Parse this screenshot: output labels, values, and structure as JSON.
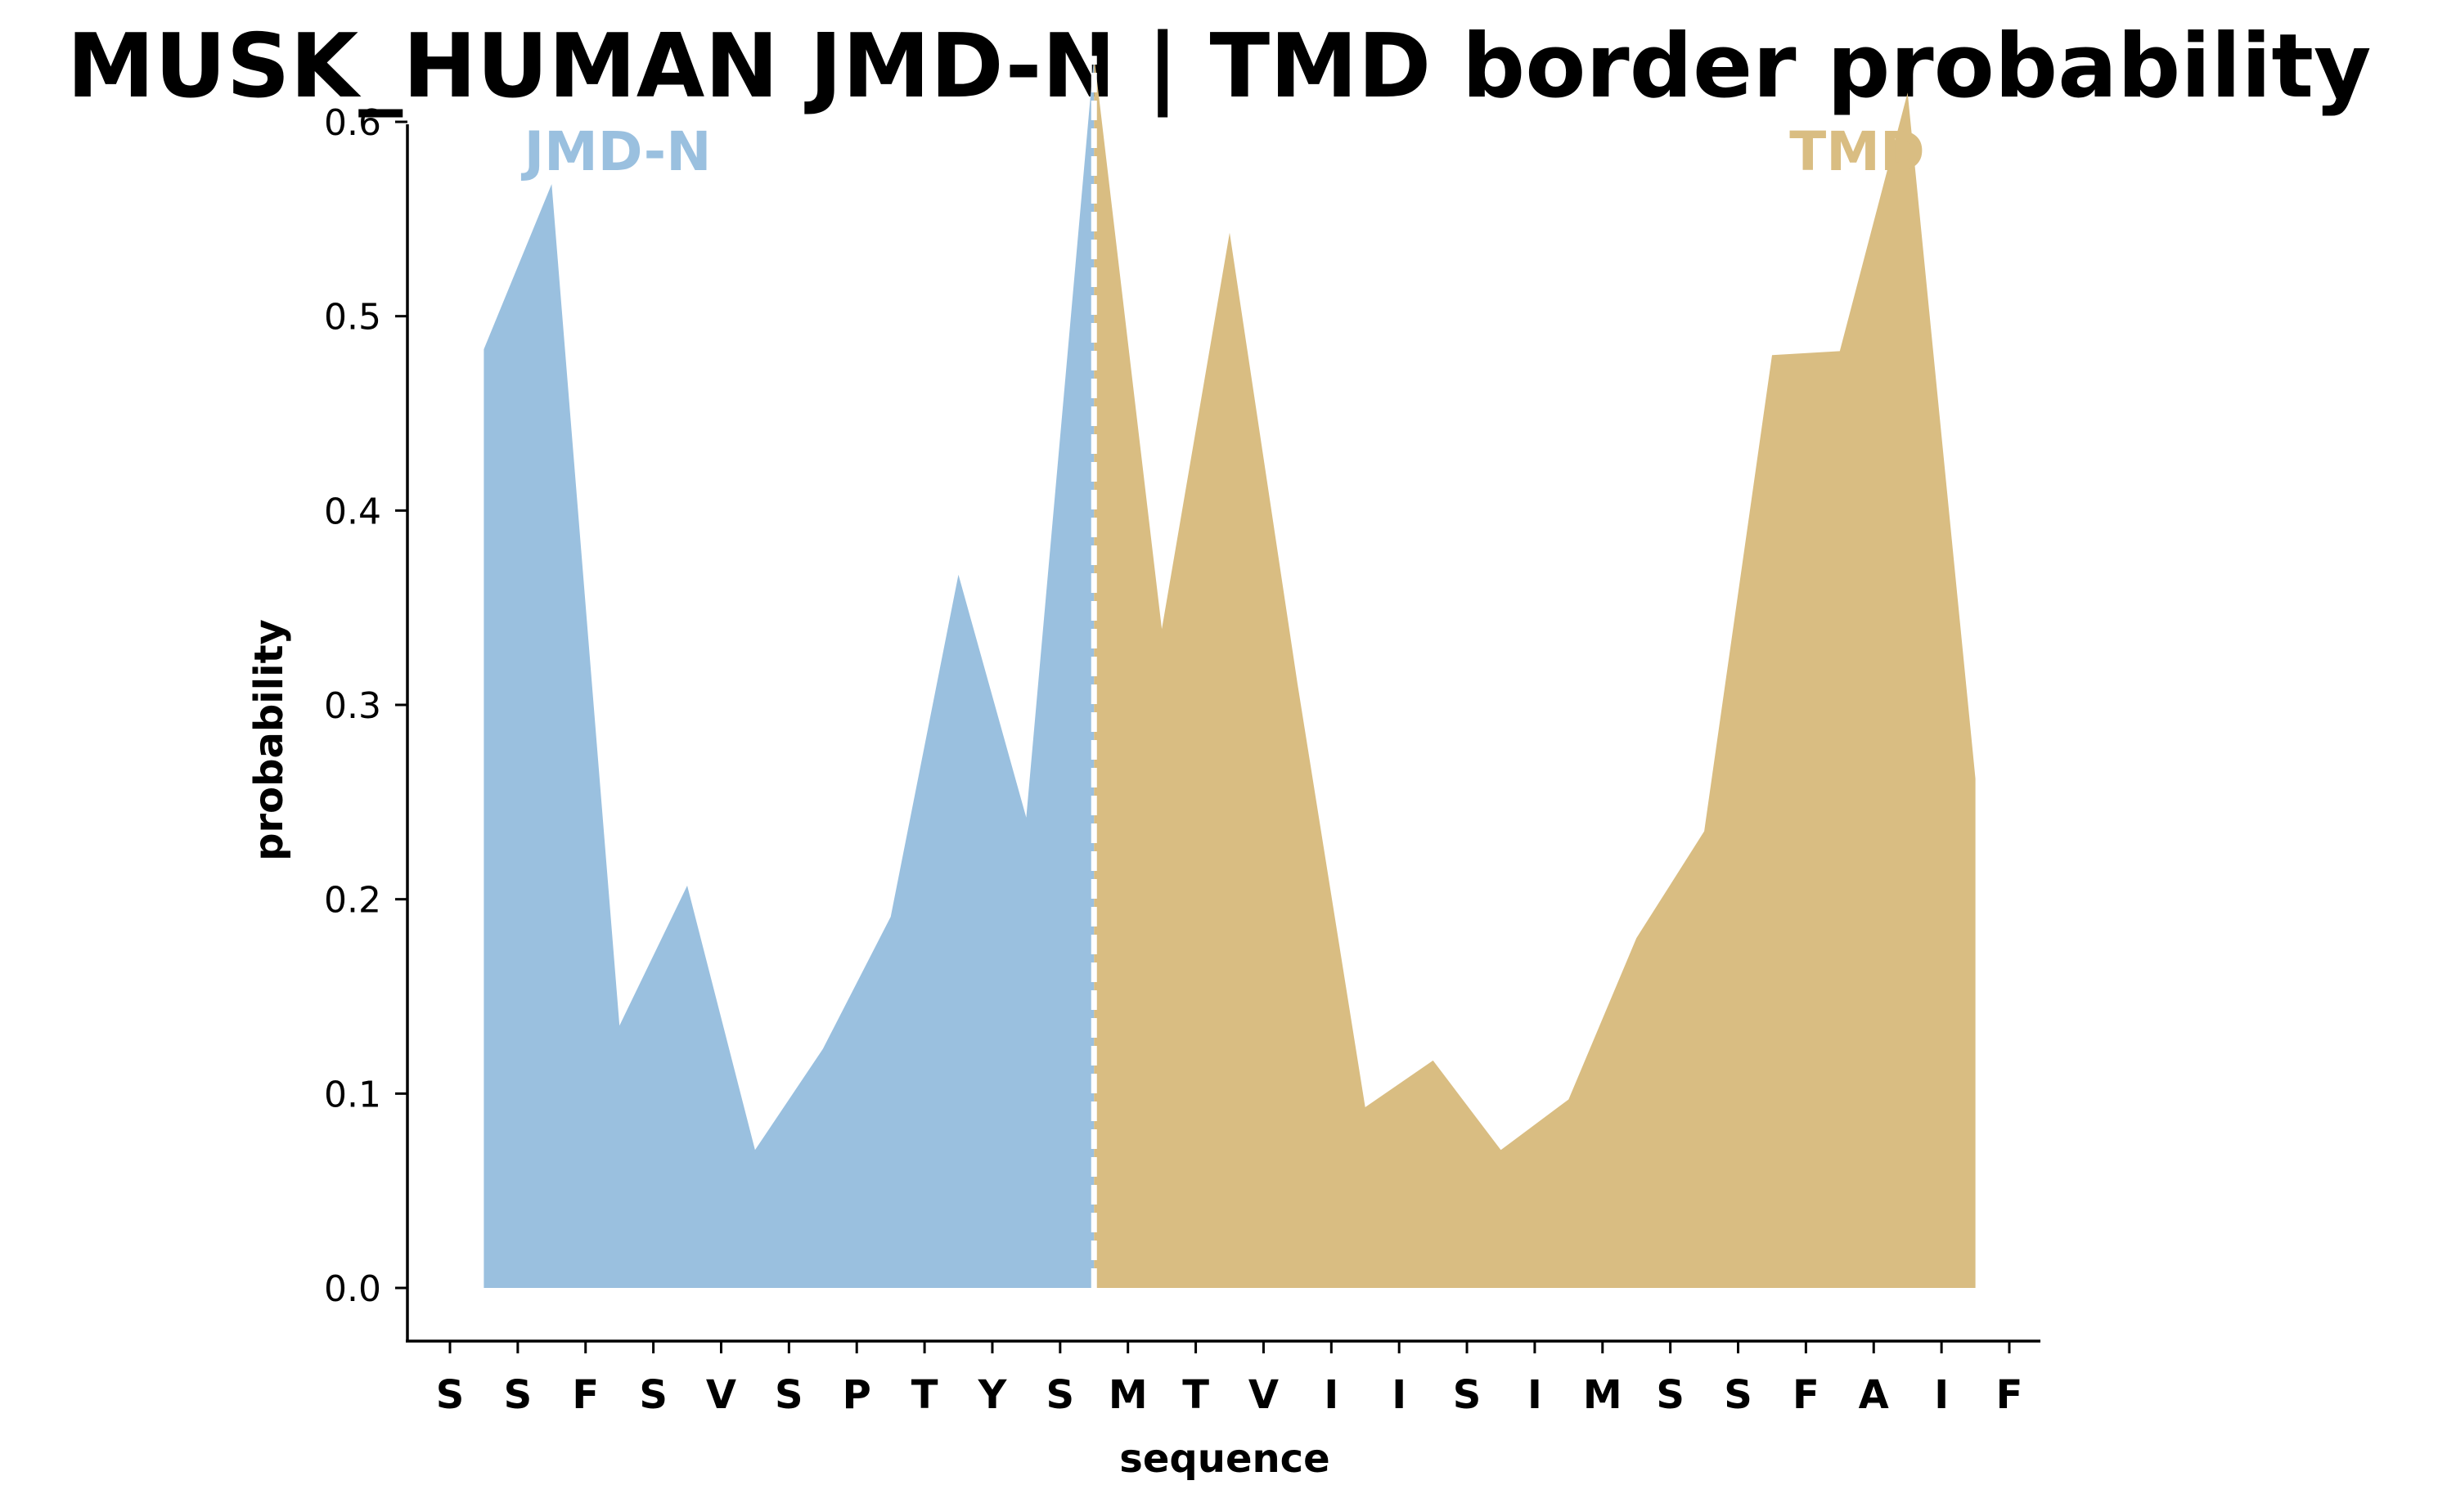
{
  "chart_data": {
    "type": "area",
    "title": "MUSK_HUMAN JMD-N | TMD border probability",
    "xlabel": "sequence",
    "ylabel": "probability",
    "ylim": [
      0,
      0.65
    ],
    "yticks": [
      "0.0",
      "0.1",
      "0.2",
      "0.3",
      "0.4",
      "0.5",
      "0.6"
    ],
    "categories": [
      "S",
      "S",
      "F",
      "S",
      "V",
      "S",
      "P",
      "T",
      "Y",
      "S",
      "M",
      "T",
      "V",
      "I",
      "I",
      "S",
      "I",
      "M",
      "S",
      "S",
      "F",
      "A",
      "I",
      "F"
    ],
    "x": [
      0.5,
      1.5,
      2.5,
      3.5,
      4.5,
      5.5,
      6.5,
      7.5,
      8.5,
      9.5,
      10.5,
      11.5,
      12.5,
      13.5,
      14.5,
      15.5,
      16.5,
      17.5,
      18.5,
      19.5,
      20.5,
      21.5,
      22.5
    ],
    "values": [
      0.483,
      0.568,
      0.135,
      0.207,
      0.071,
      0.123,
      0.191,
      0.367,
      0.242,
      0.634,
      0.339,
      0.543,
      0.311,
      0.093,
      0.117,
      0.071,
      0.097,
      0.18,
      0.235,
      0.48,
      0.482,
      0.615,
      0.262
    ],
    "border_x": 9.5,
    "regions": [
      {
        "name": "JMD-N",
        "color": "#9ac0df",
        "x_from": 0.5,
        "x_to": 9.5
      },
      {
        "name": "TMD",
        "color": "#d9bd82",
        "x_from": 9.5,
        "x_to": 22.5
      }
    ],
    "grid": false,
    "legend": "none"
  }
}
